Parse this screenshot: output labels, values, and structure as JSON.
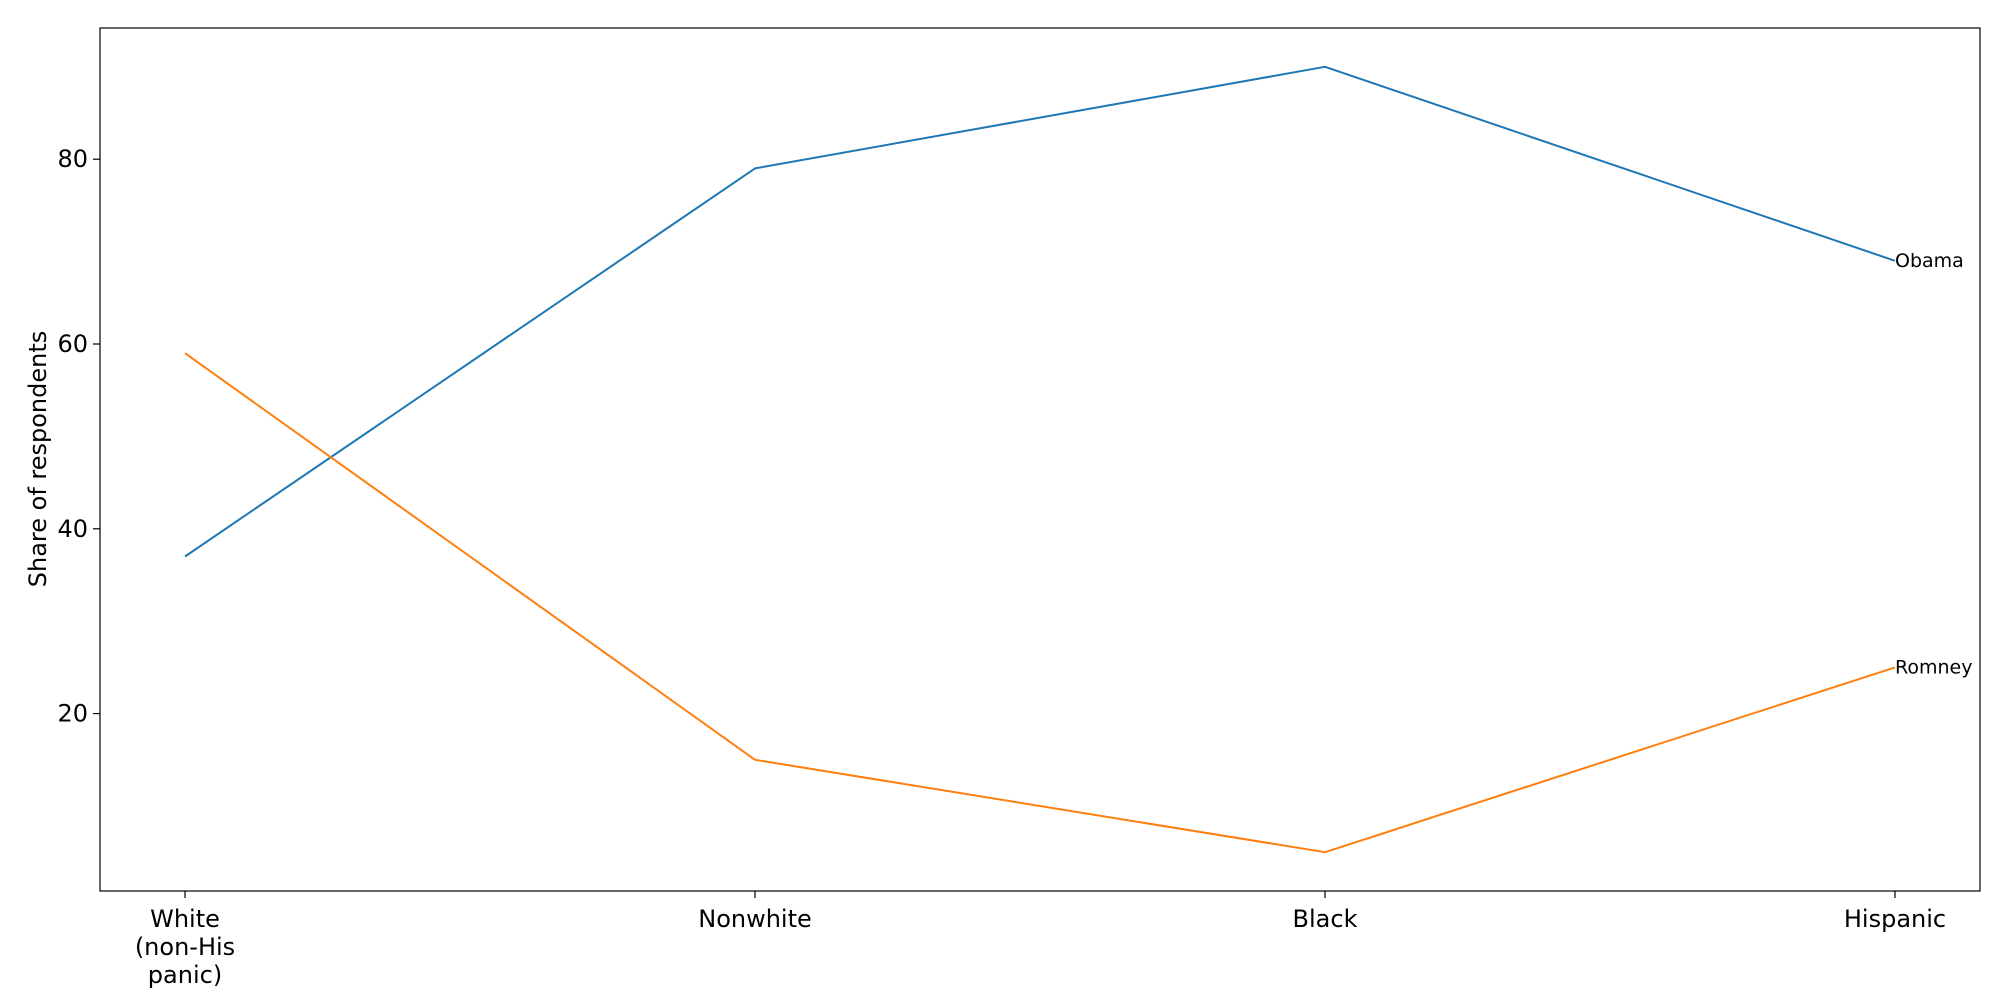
{
  "chart_data": {
    "type": "line",
    "title": "",
    "xlabel": "",
    "ylabel": "Share of respondents",
    "categories": [
      "White\n(non-His\npanic)",
      "Nonwhite",
      "Black",
      "Hispanic"
    ],
    "ylim": [
      0.8,
      94.2
    ],
    "yticks": [
      20,
      40,
      60,
      80
    ],
    "grid": false,
    "legend": "none",
    "series": [
      {
        "name": "Obama",
        "color": "#1f77b4",
        "values": [
          37,
          79,
          90,
          69
        ]
      },
      {
        "name": "Romney",
        "color": "#ff7f0e",
        "values": [
          59,
          15,
          5,
          25
        ]
      }
    ]
  }
}
